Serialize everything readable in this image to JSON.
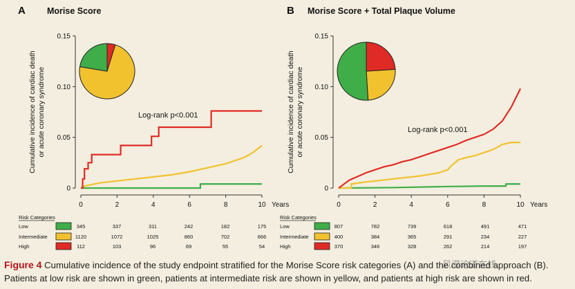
{
  "panels": [
    {
      "letter": "A",
      "title": "Morise Score",
      "ylabel": [
        "Cumulative incidence of cardiac death",
        "or acute coronary syndrome"
      ],
      "logrank": "Log-rank p<0.001",
      "pie": [
        {
          "risk": "low",
          "value": 0.224
        },
        {
          "risk": "intermediate",
          "value": 0.728
        },
        {
          "risk": "high",
          "value": 0.048
        }
      ],
      "risk_rows": [
        {
          "label": "Low",
          "counts": [
            "345",
            "337",
            "311",
            "242",
            "182",
            "175"
          ]
        },
        {
          "label": "Intermediate",
          "counts": [
            "1120",
            "1072",
            "1025",
            "860",
            "702",
            "666"
          ]
        },
        {
          "label": "High",
          "counts": [
            "112",
            "103",
            "96",
            "69",
            "55",
            "54"
          ]
        }
      ]
    },
    {
      "letter": "B",
      "title": "Morise Score + Total Plaque Volume",
      "ylabel": [
        "Cumulative incidence of cardiac death",
        "or acute coronary syndrome"
      ],
      "logrank": "Log-rank p<0.001",
      "pie": [
        {
          "risk": "low",
          "value": 0.51
        },
        {
          "risk": "intermediate",
          "value": 0.25
        },
        {
          "risk": "high",
          "value": 0.24
        }
      ],
      "risk_rows": [
        {
          "label": "Low",
          "counts": [
            "807",
            "782",
            "739",
            "618",
            "491",
            "471"
          ]
        },
        {
          "label": "Intermediate",
          "counts": [
            "400",
            "384",
            "365",
            "291",
            "234",
            "227"
          ]
        },
        {
          "label": "High",
          "counts": [
            "370",
            "346",
            "328",
            "262",
            "214",
            "197"
          ]
        }
      ]
    }
  ],
  "risk_header": "Risk Categories",
  "x_unit": "Years",
  "colors": {
    "low": "#3fae49",
    "intermediate": "#f2c12e",
    "high": "#e02a25"
  },
  "caption": {
    "label": "Figure 4",
    "text": " Cumulative incidence of the study endpoint stratified for the Morise Score risk categories (A) and the combined approach (B). Patients at low risk are shown in green, patients at intermediate risk are shown in yellow, and patients at high risk are shown in red."
  },
  "watermark": "风湿论道在线",
  "chart_data": [
    {
      "type": "line",
      "title": "Morise Score",
      "xlabel": "Years",
      "ylabel": "Cumulative incidence of cardiac death or acute coronary syndrome",
      "xlim": [
        0,
        10
      ],
      "ylim": [
        0,
        0.15
      ],
      "xticks": [
        "0",
        "2",
        "4",
        "6",
        "8",
        "10"
      ],
      "yticks": [
        "0",
        "0.05",
        "0.10",
        "0.15"
      ],
      "series": [
        {
          "risk": "low",
          "x": [
            0,
            6.6,
            6.6,
            10
          ],
          "y": [
            0,
            0,
            0.004,
            0.004
          ]
        },
        {
          "risk": "intermediate",
          "x": [
            0,
            0.2,
            0.5,
            1,
            2,
            3,
            4,
            5,
            6,
            7,
            8,
            9,
            9.5,
            10
          ],
          "y": [
            0,
            0.002,
            0.003,
            0.005,
            0.007,
            0.009,
            0.011,
            0.013,
            0.016,
            0.02,
            0.024,
            0.03,
            0.035,
            0.042
          ]
        },
        {
          "risk": "high",
          "x": [
            0,
            0.1,
            0.1,
            0.2,
            0.2,
            0.4,
            0.4,
            0.6,
            0.6,
            2.2,
            2.2,
            3.9,
            3.9,
            4.3,
            4.3,
            7.2,
            7.2,
            10
          ],
          "y": [
            0,
            0,
            0.009,
            0.009,
            0.019,
            0.019,
            0.025,
            0.025,
            0.033,
            0.033,
            0.042,
            0.042,
            0.051,
            0.051,
            0.06,
            0.06,
            0.076,
            0.076
          ]
        }
      ],
      "annotation": "Log-rank p<0.001"
    },
    {
      "type": "line",
      "title": "Morise Score + Total Plaque Volume",
      "xlabel": "Years",
      "ylabel": "Cumulative incidence of cardiac death or acute coronary syndrome",
      "xlim": [
        0,
        10
      ],
      "ylim": [
        0,
        0.15
      ],
      "xticks": [
        "0",
        "2",
        "4",
        "6",
        "8",
        "10"
      ],
      "yticks": [
        "0",
        "0.05",
        "0.10",
        "0.15"
      ],
      "series": [
        {
          "risk": "low",
          "x": [
            0,
            3,
            6,
            8,
            9.2,
            9.2,
            10
          ],
          "y": [
            0,
            0.0005,
            0.0015,
            0.002,
            0.002,
            0.004,
            0.004
          ]
        },
        {
          "risk": "intermediate",
          "x": [
            0,
            0.7,
            0.7,
            1.5,
            2.5,
            3.5,
            4.5,
            5.5,
            6,
            6.2,
            6.6,
            7,
            7.5,
            8,
            8.5,
            8.8,
            9,
            9.5,
            10
          ],
          "y": [
            0,
            0,
            0.004,
            0.006,
            0.008,
            0.01,
            0.012,
            0.015,
            0.018,
            0.022,
            0.028,
            0.03,
            0.032,
            0.035,
            0.038,
            0.041,
            0.043,
            0.045,
            0.045
          ]
        },
        {
          "risk": "high",
          "x": [
            0,
            0.3,
            0.6,
            1,
            1.5,
            2,
            2.5,
            3,
            3.5,
            4,
            4.5,
            5,
            5.5,
            6,
            6.5,
            7,
            7.5,
            8,
            8.5,
            9,
            9.5,
            10
          ],
          "y": [
            0,
            0.004,
            0.008,
            0.011,
            0.015,
            0.018,
            0.021,
            0.023,
            0.026,
            0.028,
            0.031,
            0.034,
            0.037,
            0.04,
            0.043,
            0.047,
            0.05,
            0.053,
            0.058,
            0.066,
            0.08,
            0.098
          ]
        }
      ],
      "annotation": "Log-rank p<0.001"
    }
  ]
}
